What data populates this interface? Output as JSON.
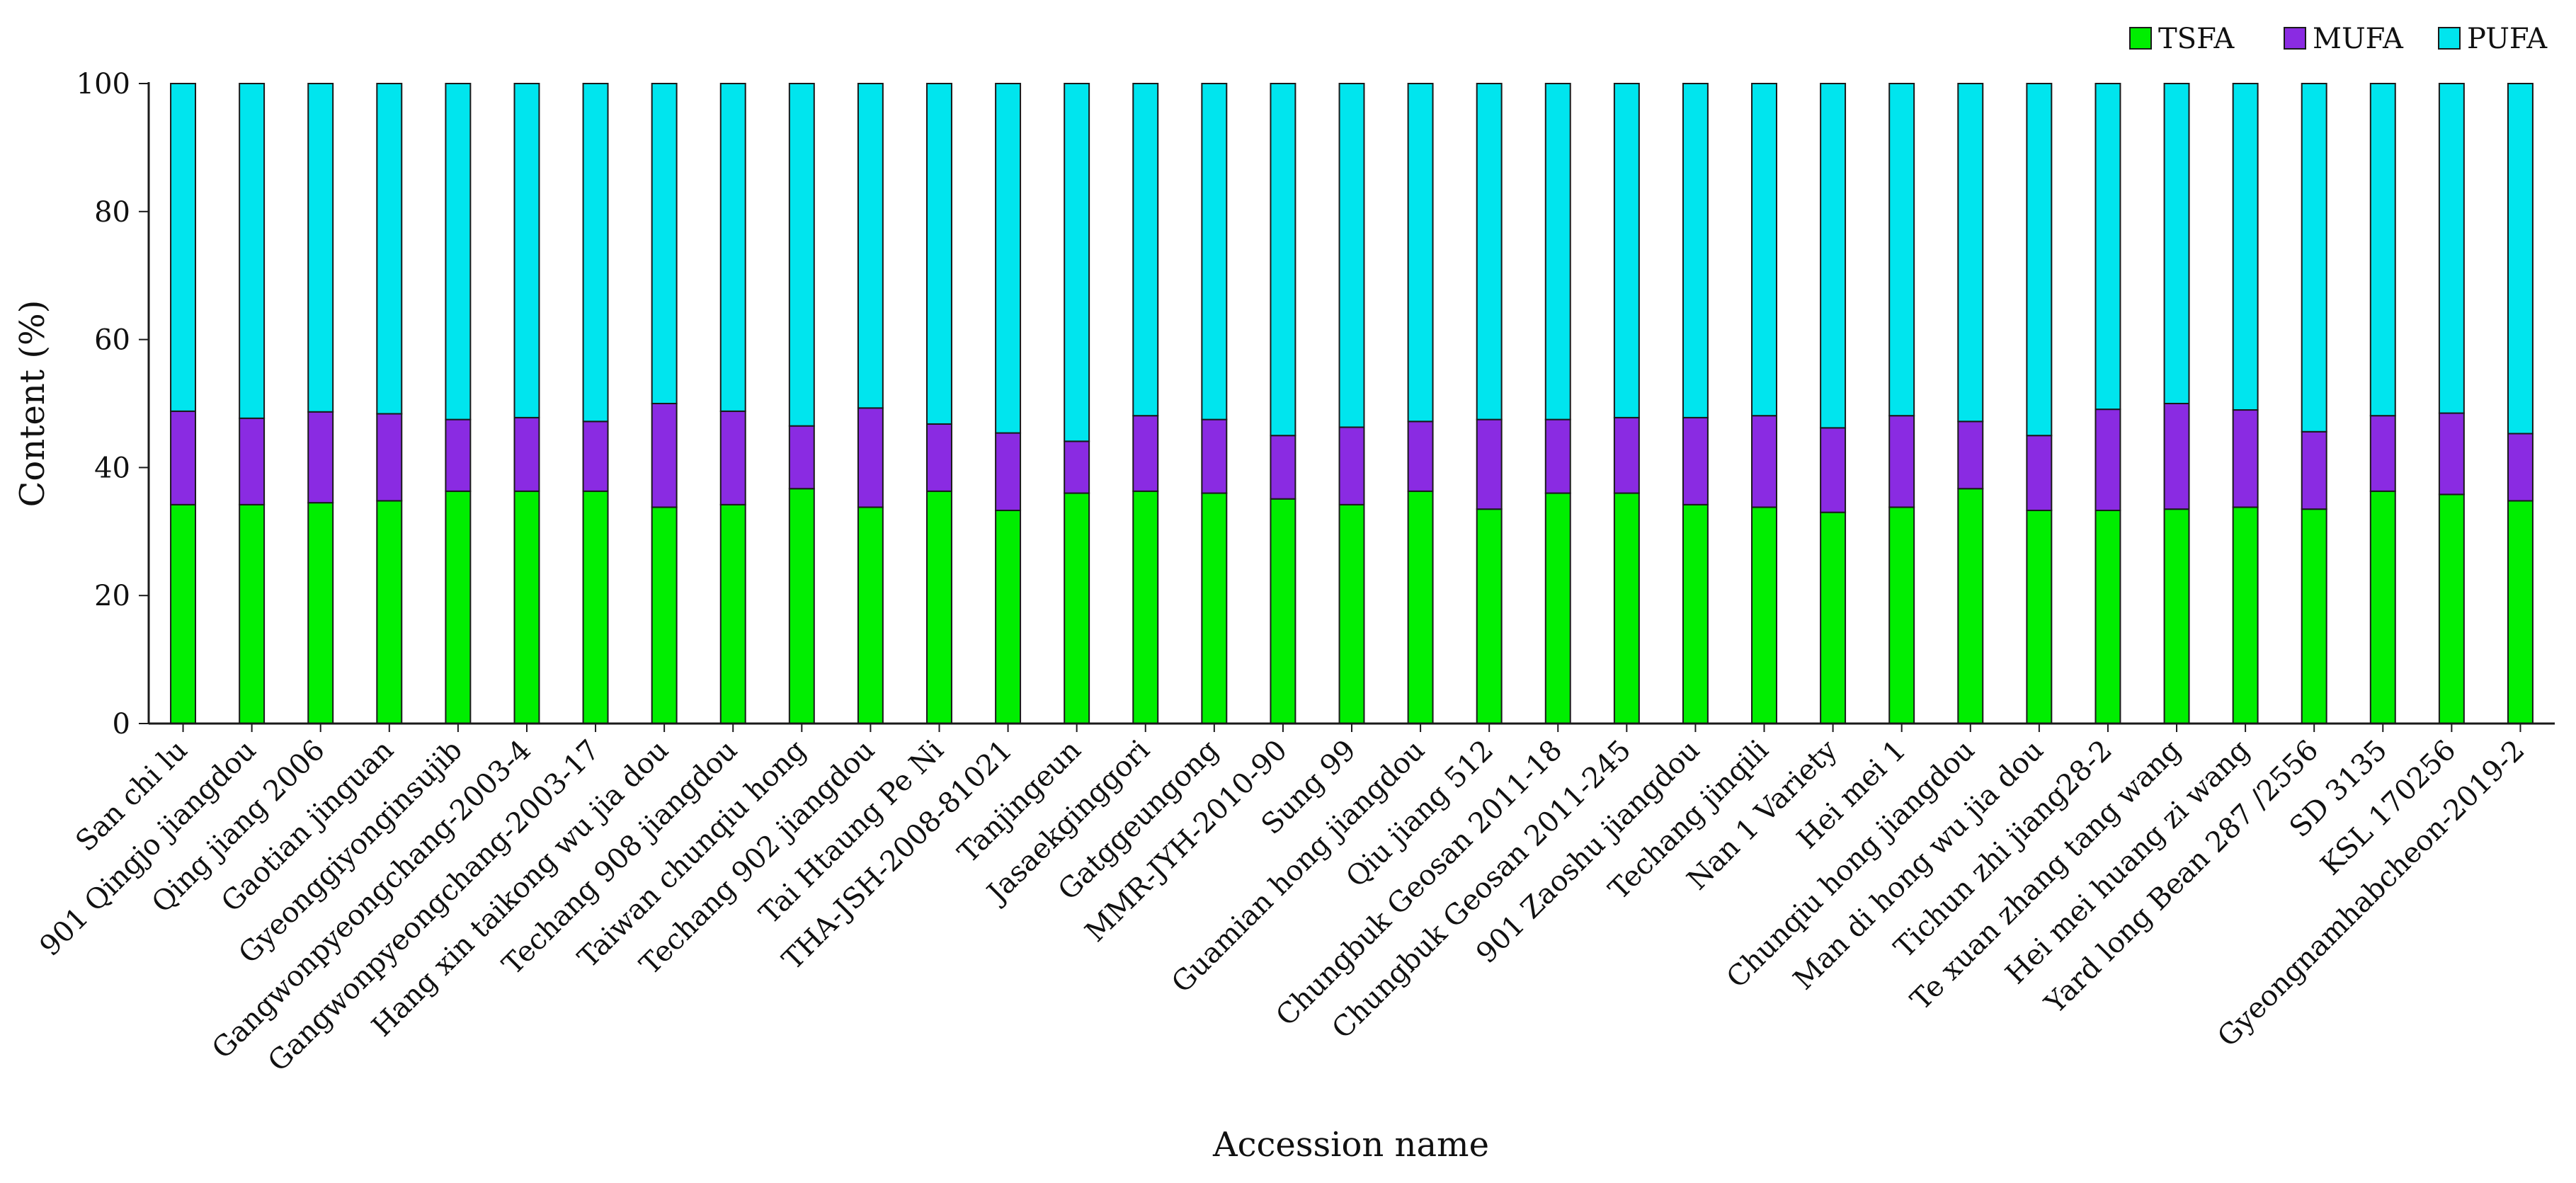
{
  "chart_data": {
    "type": "stacked-bar",
    "title": "",
    "xlabel": "Accession name",
    "ylabel": "Content (%)",
    "ylim": [
      0,
      100
    ],
    "yticks": [
      0,
      20,
      40,
      60,
      80,
      100
    ],
    "grid": false,
    "legend_position": "top-right",
    "categories": [
      "San chi lu",
      "901 Qingjo jiangdou",
      "Qing jiang 2006",
      "Gaotian jinguan",
      "Gyeonggiyonginsujib",
      "Gangwonpyeongchang-2003-4",
      "Gangwonpyeongchang-2003-17",
      "Hang xin taikong wu jia dou",
      "Techang 908 jiangdou",
      "Taiwan chunqiu hong",
      "Techang 902 jiangdou",
      "Tai Htaung Pe Ni",
      "THA-JSH-2008-81021",
      "Tanjingeun",
      "Jasaekginggori",
      "Gatggeungong",
      "MMR-JYH-2010-90",
      "Sung 99",
      "Guamian hong jiangdou",
      "Qiu jiang 512",
      "Chungbuk Geosan 2011-18",
      "Chungbuk Geosan 2011-245",
      "901 Zaoshu jiangdou",
      "Techang jinqili",
      "Nan 1 Variety",
      "Hei mei 1",
      "Chunqiu hong jiangdou",
      "Man di hong wu jia dou",
      "Tichun zhi jiang28-2",
      "Te xuan zhang tang wang",
      "Hei mei huang zi wang",
      "Yard long Bean 287 /2556",
      "SD 3135",
      "KSL 170256",
      "Gyeongnamhabcheon-2019-2"
    ],
    "series": [
      {
        "name": "TSFA",
        "color": "#00ee00",
        "values": [
          34.2,
          34.2,
          34.5,
          34.8,
          36.3,
          36.3,
          36.3,
          33.8,
          34.2,
          36.7,
          33.8,
          36.3,
          33.3,
          36.0,
          36.3,
          36.0,
          35.1,
          34.2,
          36.3,
          33.5,
          36.0,
          36.0,
          34.2,
          33.8,
          33.0,
          33.8,
          36.7,
          33.3,
          33.3,
          33.5,
          33.8,
          33.5,
          36.3,
          35.8,
          34.8
        ]
      },
      {
        "name": "MUFA",
        "color": "#8a2be2",
        "values": [
          14.6,
          13.5,
          14.2,
          13.6,
          11.2,
          11.5,
          10.9,
          16.2,
          14.6,
          9.8,
          15.5,
          10.5,
          12.1,
          8.1,
          11.8,
          11.5,
          9.9,
          12.1,
          10.9,
          14.0,
          11.5,
          11.8,
          13.6,
          14.3,
          13.2,
          14.3,
          10.5,
          11.7,
          15.8,
          16.5,
          15.2,
          12.1,
          11.8,
          12.7,
          10.5
        ]
      },
      {
        "name": "PUFA",
        "color": "#00e5ee",
        "values": [
          51.2,
          52.3,
          51.3,
          51.6,
          52.5,
          52.2,
          52.8,
          50.0,
          51.2,
          53.5,
          50.7,
          53.2,
          54.6,
          55.9,
          51.9,
          52.5,
          55.0,
          53.7,
          52.8,
          52.5,
          52.5,
          52.2,
          52.2,
          51.9,
          53.8,
          51.9,
          52.8,
          55.0,
          50.9,
          50.0,
          51.0,
          54.4,
          51.9,
          51.5,
          54.7
        ]
      }
    ]
  }
}
